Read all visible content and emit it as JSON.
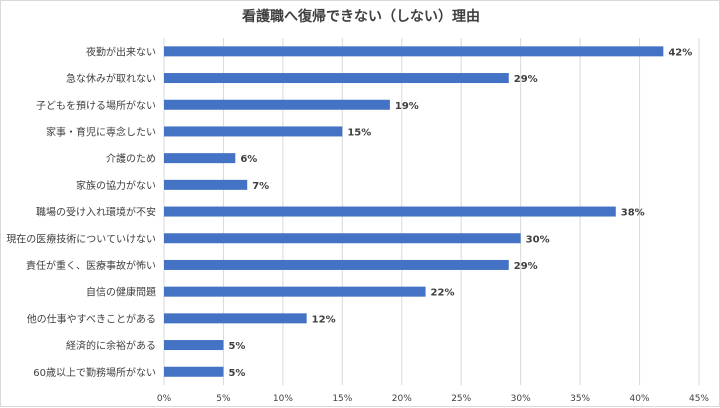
{
  "chart_data": {
    "type": "bar",
    "orientation": "horizontal",
    "title": "看護職へ復帰できない（しない）理由",
    "xlabel": "",
    "ylabel": "",
    "categories": [
      "夜勤が出来ない",
      "急な休みが取れない",
      "子どもを預ける場所がない",
      "家事・育児に専念したい",
      "介護のため",
      "家族の協力がない",
      "職場の受け入れ環境が不安",
      "現在の医療技術についていけない",
      "責任が重く、医療事故が怖い",
      "自信の健康問題",
      "他の仕事やすべきことがある",
      "経済的に余裕がある",
      "60歳以上で勤務場所がない"
    ],
    "values": [
      42,
      29,
      19,
      15,
      6,
      7,
      38,
      30,
      29,
      22,
      12,
      5,
      5
    ],
    "data_labels": [
      "42%",
      "29%",
      "19%",
      "15%",
      "6%",
      "7%",
      "38%",
      "30%",
      "29%",
      "22%",
      "12%",
      "5%",
      "5%"
    ],
    "xlim": [
      0,
      45
    ],
    "x_ticks": [
      0,
      5,
      10,
      15,
      20,
      25,
      30,
      35,
      40,
      45
    ],
    "x_tick_labels": [
      "0%",
      "5%",
      "10%",
      "15%",
      "20%",
      "25%",
      "30%",
      "35%",
      "40%",
      "45%"
    ],
    "grid": true,
    "legend": "none",
    "colors": {
      "bar": "#4472c4",
      "grid": "#d9d9d9",
      "text": "#404040"
    }
  }
}
